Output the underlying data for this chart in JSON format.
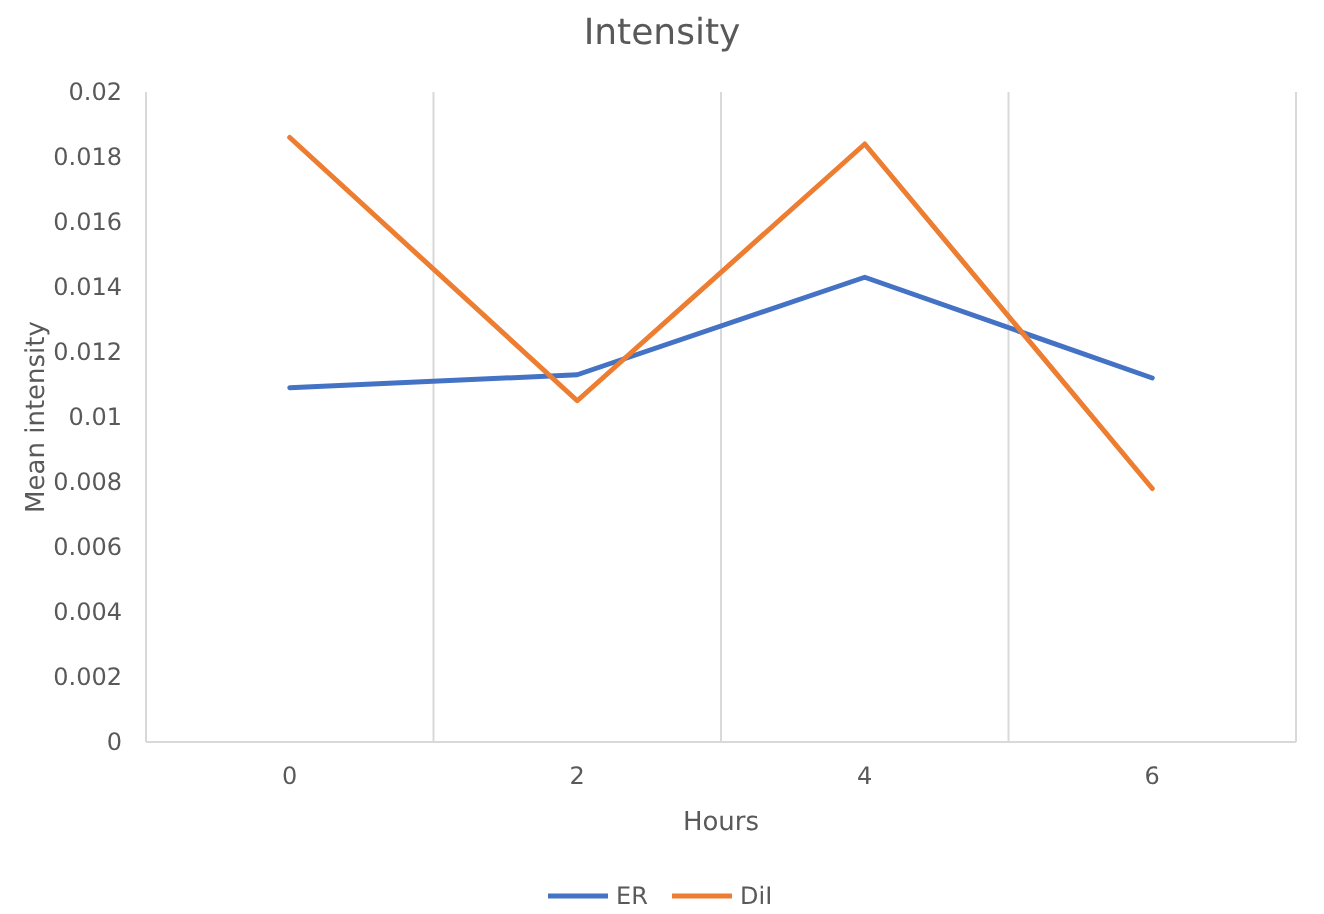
{
  "chart_data": {
    "type": "line",
    "title": "Intensity",
    "xlabel": "Hours",
    "ylabel": "Mean intensity",
    "categories": [
      "0",
      "2",
      "4",
      "6"
    ],
    "series": [
      {
        "name": "ER",
        "color": "#4472c4",
        "values": [
          0.0109,
          0.0113,
          0.0143,
          0.0112
        ]
      },
      {
        "name": "DiI",
        "color": "#ed7d31",
        "values": [
          0.0186,
          0.0105,
          0.0184,
          0.0078
        ]
      }
    ],
    "ylim": [
      0,
      0.02
    ],
    "yticks": [
      0,
      0.002,
      0.004,
      0.006,
      0.008,
      0.01,
      0.012,
      0.014,
      0.016,
      0.018,
      0.02
    ],
    "grid": "x",
    "legend": "bottom",
    "marker": "none",
    "line_style": "solid"
  }
}
